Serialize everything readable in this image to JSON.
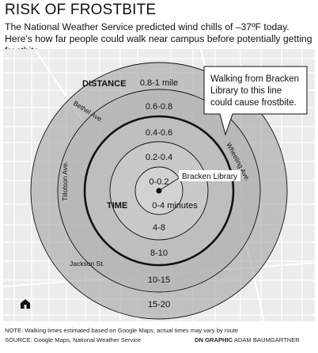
{
  "title": "RISK OF FROSTBITE",
  "subtitle": "The National Weather Service predicted wind chills of –37ºF today. Here's how far people could walk near campus before potentially getting frostbite.",
  "map": {
    "rings": [
      {
        "distance": "0-0.2",
        "time": "0-4 minutes",
        "fill": "#d9d9d9"
      },
      {
        "distance": "0.2-0.4",
        "time": "4-8",
        "fill": "#cfcfcf"
      },
      {
        "distance": "0.4-0.6",
        "time": "8-10",
        "fill": "#c2c2c2"
      },
      {
        "distance": "0.6-0.8",
        "time": "10-15",
        "fill": "#b3b3b3"
      },
      {
        "distance": "0.8-1 mile",
        "time": "15-20",
        "fill": "#a5a5a5"
      }
    ],
    "distance_header": "DISTANCE",
    "time_header": "TIME",
    "frostbite_boundary": "0.4-0.6",
    "center_label": "Bracken Library",
    "callout": [
      "Walking from Bracken",
      "Library to this line",
      "could cause frostbite."
    ],
    "streets": [
      "Bethel Ave.",
      "Tillotson Ave.",
      "Wheeling Ave.",
      "Jackson St."
    ],
    "home_icon": "home-icon"
  },
  "footer": {
    "note": "NOTE: Walking times estimated based on Google Maps, actual times may vary by route",
    "source": "SOURCE: Google Maps, National Weather Service",
    "credit_bold": "DN GRAPHIC",
    "credit_name": "ADAM BAUMGARTNER"
  }
}
